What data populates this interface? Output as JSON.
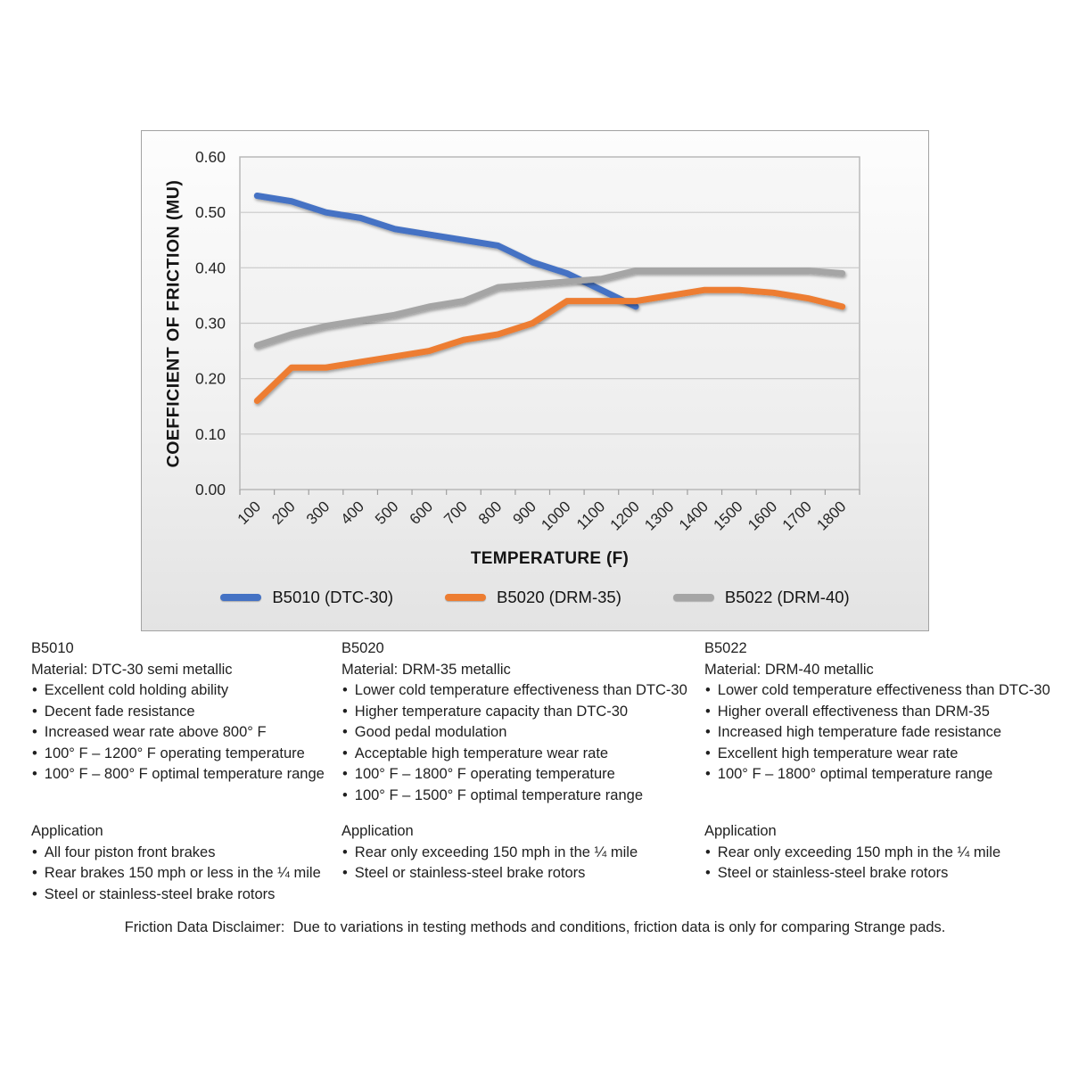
{
  "chart_data": {
    "type": "line",
    "title": "",
    "xlabel": "TEMPERATURE (F)",
    "ylabel": "COEFFICIENT OF FRICTION (MU)",
    "x_categories": [
      "100",
      "200",
      "300",
      "400",
      "500",
      "600",
      "700",
      "800",
      "900",
      "1000",
      "1100",
      "1200",
      "1300",
      "1400",
      "1500",
      "1600",
      "1700",
      "1800"
    ],
    "ylim": [
      0.0,
      0.6
    ],
    "ytick_step": 0.1,
    "ytick_labels": [
      "0.60",
      "0.50",
      "0.40",
      "0.30",
      "0.20",
      "0.10",
      "0.00"
    ],
    "grid": "horizontal",
    "legend_position": "bottom",
    "series": [
      {
        "name": "B5010 (DTC-30)",
        "color": "#4472C4",
        "values": [
          0.53,
          0.52,
          0.5,
          0.49,
          0.47,
          0.46,
          0.45,
          0.44,
          0.41,
          0.39,
          0.36,
          0.33
        ]
      },
      {
        "name": "B5020 (DRM-35)",
        "color": "#ED7D31",
        "values": [
          0.16,
          0.22,
          0.22,
          0.23,
          0.24,
          0.25,
          0.27,
          0.28,
          0.3,
          0.34,
          0.34,
          0.34,
          0.35,
          0.36,
          0.36,
          0.355,
          0.345,
          0.33
        ]
      },
      {
        "name": "B5022 (DRM-40)",
        "color": "#A5A5A5",
        "values": [
          0.26,
          0.28,
          0.295,
          0.305,
          0.315,
          0.33,
          0.34,
          0.365,
          0.37,
          0.375,
          0.38,
          0.395,
          0.395,
          0.395,
          0.395,
          0.395,
          0.395,
          0.39
        ]
      }
    ]
  },
  "columns": [
    {
      "id": "B5010",
      "material": "Material: DTC-30 semi metallic",
      "features": [
        "Excellent cold holding ability",
        "Decent fade resistance",
        "Increased wear rate above 800° F",
        "100° F – 1200° F operating temperature",
        "100° F – 800° F optimal temperature range"
      ],
      "application_title": "Application",
      "applications": [
        "All four piston front brakes",
        "Rear brakes 150 mph or less in the ¼ mile",
        "Steel or stainless-steel brake rotors"
      ]
    },
    {
      "id": "B5020",
      "material": "Material: DRM-35 metallic",
      "features": [
        "Lower cold temperature effectiveness than DTC-30",
        "Higher temperature capacity than DTC-30",
        "Good pedal modulation",
        "Acceptable high temperature wear rate",
        "100° F – 1800° F operating temperature",
        "100° F – 1500° F optimal temperature range"
      ],
      "application_title": "Application",
      "applications": [
        "Rear only exceeding 150 mph in the ¼ mile",
        "Steel or stainless-steel brake rotors"
      ]
    },
    {
      "id": "B5022",
      "material": "Material: DRM-40 metallic",
      "features": [
        "Lower cold temperature effectiveness than DTC-30",
        "Higher overall effectiveness than DRM-35",
        "Increased high temperature fade resistance",
        "Excellent high temperature wear rate",
        "100° F – 1800° optimal temperature range"
      ],
      "application_title": "Application",
      "applications": [
        "Rear only exceeding 150 mph in the ¼ mile",
        "Steel or stainless-steel brake rotors"
      ]
    }
  ],
  "disclaimer": "Friction Data Disclaimer:  Due to variations in testing methods and conditions, friction data is only for comparing Strange pads.",
  "style": {
    "gridline_color": "#c8c8c8",
    "axis_color": "#9e9e9e",
    "plot_border_color": "#b5b5b5",
    "tick_label_color": "#262626"
  }
}
